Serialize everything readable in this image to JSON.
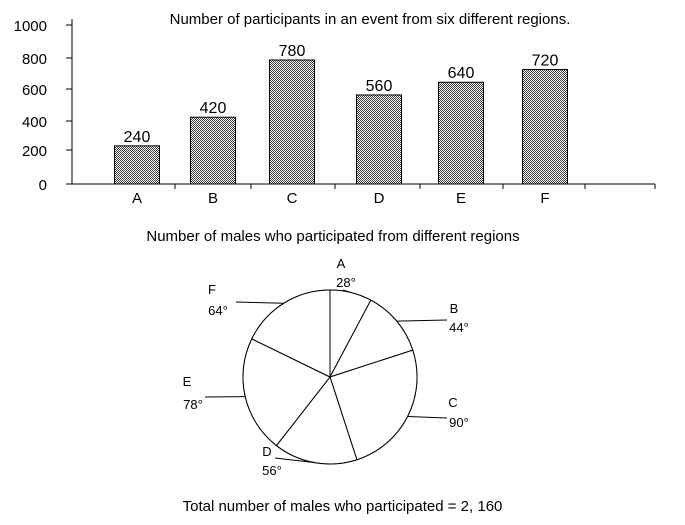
{
  "chart_data": [
    {
      "type": "bar",
      "title": "Number of participants  in an event from six different regions.",
      "xlabel": "",
      "ylabel": "",
      "categories": [
        "A",
        "B",
        "C",
        "D",
        "E",
        "F"
      ],
      "values": [
        240,
        420,
        780,
        560,
        640,
        720
      ],
      "yticks": [
        "0",
        "200",
        "400",
        "600",
        "800",
        "1000"
      ],
      "ylim": [
        0,
        1000
      ],
      "grid": false,
      "legend": "none"
    },
    {
      "type": "pie",
      "title": "Number of males who participated from different regions",
      "labels": [
        "A",
        "B",
        "C",
        "D",
        "E",
        "F"
      ],
      "values": [
        28,
        44,
        90,
        56,
        78,
        64
      ],
      "value_labels": [
        "28°",
        "44°",
        "90°",
        "56°",
        "78°",
        "64°"
      ],
      "unit": "degrees",
      "legend": "none"
    }
  ],
  "footer": "Total number of males who participated = 2, 160",
  "colors": {
    "bar_fill": "#bdbdbd",
    "bar_pattern_dot": "#4a4a4a",
    "stroke": "#000000",
    "pie_fill": "#ffffff"
  }
}
